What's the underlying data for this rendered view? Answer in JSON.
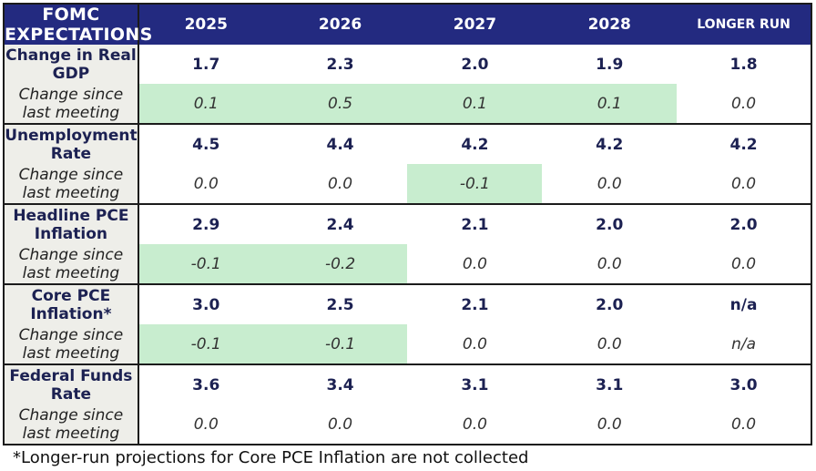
{
  "header": {
    "title": "FOMC EXPECTATIONS",
    "columns": [
      "2025",
      "2026",
      "2027",
      "2028",
      "LONGER RUN"
    ]
  },
  "groups": [
    {
      "label": "Change in Real GDP",
      "values": [
        "1.7",
        "2.3",
        "2.0",
        "1.9",
        "1.8"
      ],
      "change_label": "Change since last meeting",
      "change": [
        "0.1",
        "0.5",
        "0.1",
        "0.1",
        "0.0"
      ]
    },
    {
      "label": "Unemployment Rate",
      "values": [
        "4.5",
        "4.4",
        "4.2",
        "4.2",
        "4.2"
      ],
      "change_label": "Change since last meeting",
      "change": [
        "0.0",
        "0.0",
        "-0.1",
        "0.0",
        "0.0"
      ]
    },
    {
      "label": "Headline PCE Inflation",
      "values": [
        "2.9",
        "2.4",
        "2.1",
        "2.0",
        "2.0"
      ],
      "change_label": "Change since last meeting",
      "change": [
        "-0.1",
        "-0.2",
        "0.0",
        "0.0",
        "0.0"
      ]
    },
    {
      "label": "Core PCE Inflation*",
      "values": [
        "3.0",
        "2.5",
        "2.1",
        "2.0",
        "n/a"
      ],
      "change_label": "Change since last meeting",
      "change": [
        "-0.1",
        "-0.1",
        "0.0",
        "0.0",
        "n/a"
      ]
    },
    {
      "label": "Federal Funds Rate",
      "values": [
        "3.6",
        "3.4",
        "3.1",
        "3.1",
        "3.0"
      ],
      "change_label": "Change since last meeting",
      "change": [
        "0.0",
        "0.0",
        "0.0",
        "0.0",
        "0.0"
      ]
    }
  ],
  "footnote": "*Longer-run projections for Core PCE Inflation are not collected"
}
